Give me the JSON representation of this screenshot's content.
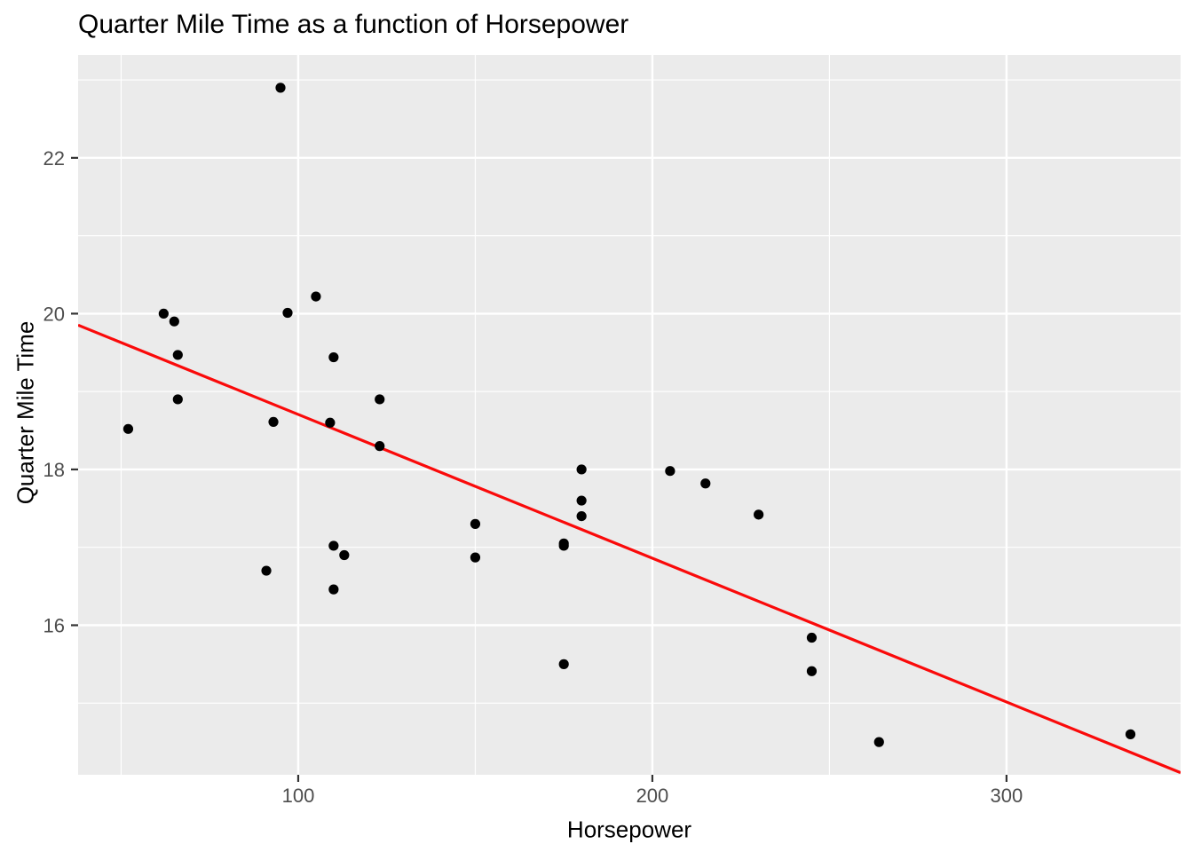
{
  "chart_data": {
    "type": "scatter",
    "title": "Quarter Mile Time as a function of Horsepower",
    "xlabel": "Horsepower",
    "ylabel": "Quarter Mile Time",
    "xlim": [
      37.85,
      349.15
    ],
    "ylim": [
      14.08,
      23.32
    ],
    "x_major_ticks": [
      100,
      200,
      300
    ],
    "y_major_ticks": [
      16,
      18,
      20,
      22
    ],
    "x_minor_ticks": [
      50,
      150,
      250
    ],
    "y_minor_ticks": [
      15,
      17,
      19,
      21,
      23
    ],
    "grid": "on",
    "legend_position": "none",
    "points": [
      [
        110,
        16.46
      ],
      [
        110,
        17.02
      ],
      [
        93,
        18.61
      ],
      [
        110,
        19.44
      ],
      [
        175,
        17.02
      ],
      [
        105,
        20.22
      ],
      [
        245,
        15.84
      ],
      [
        62,
        20.0
      ],
      [
        95,
        22.9
      ],
      [
        123,
        18.3
      ],
      [
        123,
        18.9
      ],
      [
        180,
        17.4
      ],
      [
        180,
        17.6
      ],
      [
        180,
        18.0
      ],
      [
        205,
        17.98
      ],
      [
        215,
        17.82
      ],
      [
        230,
        17.42
      ],
      [
        66,
        19.47
      ],
      [
        52,
        18.52
      ],
      [
        65,
        19.9
      ],
      [
        97,
        20.01
      ],
      [
        150,
        16.87
      ],
      [
        150,
        17.3
      ],
      [
        245,
        15.41
      ],
      [
        175,
        17.05
      ],
      [
        66,
        18.9
      ],
      [
        91,
        16.7
      ],
      [
        113,
        16.9
      ],
      [
        264,
        14.5
      ],
      [
        175,
        15.5
      ],
      [
        335,
        14.6
      ],
      [
        109,
        18.6
      ]
    ],
    "trend_line": {
      "type": "linear",
      "slope": -0.018457,
      "intercept": 20.5516
    },
    "colors": {
      "panel_background": "#EBEBEB",
      "gridline": "#FFFFFF",
      "point": "#000000",
      "trend_line": "#FA0A0A",
      "tick_label": "#4D4D4D",
      "tick_mark": "#333333",
      "title": "#000000",
      "axis_title": "#000000"
    }
  }
}
